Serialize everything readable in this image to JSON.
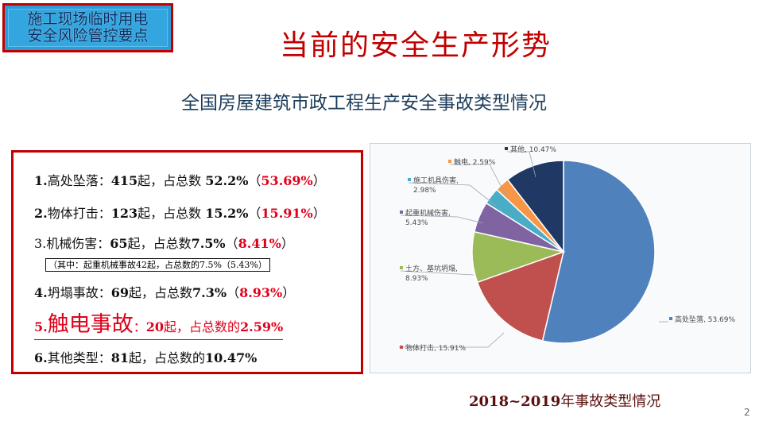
{
  "badge": {
    "line1": "施工现场临时用电",
    "line2": "安全风险管控要点"
  },
  "page_title": "当前的安全生产形势",
  "subtitle": "全国房屋建筑市政工程生产安全事故类型情况",
  "stats": [
    {
      "num": "1.",
      "name": "高处坠落：",
      "count": "415",
      "unit": "起，",
      "share_text": "占总数 ",
      "share": "52.2%",
      "open": "（",
      "recent": "53.69%",
      "close": "）"
    },
    {
      "num": "2.",
      "name": "物体打击：",
      "count": "123",
      "unit": "起，",
      "share_text": "占总数 ",
      "share": "15.2%",
      "open": "（",
      "recent": "15.91%",
      "close": "）"
    },
    {
      "num": "3.",
      "name": "机械伤害：",
      "count": "65",
      "unit": "起，",
      "share_text": "占总数",
      "share": "7.5%",
      "open": "（",
      "recent": "8.41%",
      "close": "）"
    },
    {
      "num": "4.",
      "name": "坍塌事故：",
      "count": "69",
      "unit": "起，",
      "share_text": "占总数",
      "share": "7.3%",
      "open": "（",
      "recent": "8.93%",
      "close": "）"
    },
    {
      "num": "5.",
      "name": "触电事故",
      "sep": "：",
      "count": "20",
      "unit": "起，",
      "share_text": "占总数的",
      "share": "2.59%"
    },
    {
      "num": "6.",
      "name": "其他类型：",
      "count": "81",
      "unit": "起，",
      "share_text": "占总数的",
      "share": "10.47%"
    }
  ],
  "note": "（其中：起重机械事故42起，占总数的7.5%（5.43%）",
  "chart_caption": {
    "years": "2018~2019",
    "text": "年事故类型情况"
  },
  "page_number": "2",
  "chart_data": {
    "type": "pie",
    "title": "",
    "slices": [
      {
        "name": "高处坠落",
        "value": 53.69,
        "label": "高处坠落, 53.69%",
        "color": "#4f81bd"
      },
      {
        "name": "物体打击",
        "value": 15.91,
        "label": "物体打击, 15.91%",
        "color": "#c0504d"
      },
      {
        "name": "土方、基坑坍塌",
        "value": 8.93,
        "label_lines": [
          "土方、基坑坍塌,",
          "8.93%"
        ],
        "color": "#9bbb59"
      },
      {
        "name": "起重机械伤害",
        "value": 5.43,
        "label_lines": [
          "起重机械伤害,",
          "5.43%"
        ],
        "color": "#8064a2"
      },
      {
        "name": "施工机具伤害",
        "value": 2.98,
        "label_lines": [
          "施工机具伤害,",
          "2.98%"
        ],
        "color": "#4bacc6"
      },
      {
        "name": "触电",
        "value": 2.59,
        "label": "触电, 2.59%",
        "color": "#f79646"
      },
      {
        "name": "其他",
        "value": 10.47,
        "label": "其他, 10.47%",
        "color": "#1f3864"
      }
    ]
  }
}
